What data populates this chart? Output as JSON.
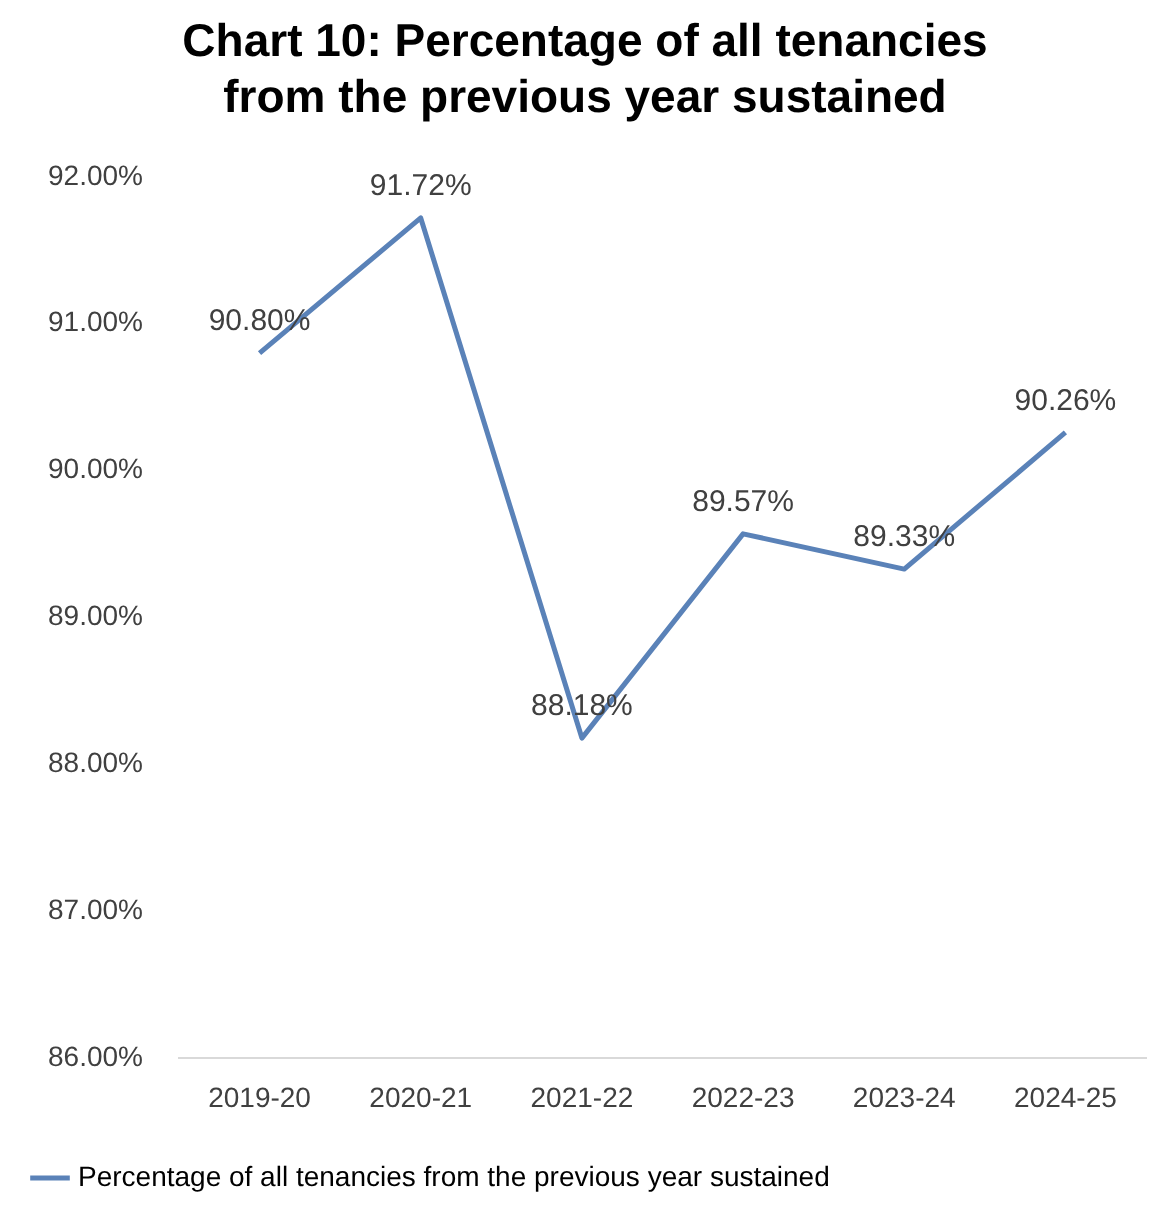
{
  "chart_data": {
    "type": "line",
    "title": "Chart 10: Percentage of all tenancies from the previous year sustained",
    "categories": [
      "2019-20",
      "2020-21",
      "2021-22",
      "2022-23",
      "2023-24",
      "2024-25"
    ],
    "series": [
      {
        "name": "Percentage of all tenancies from the previous year sustained",
        "color": "#5a82b8",
        "values": [
          90.8,
          91.72,
          88.18,
          89.57,
          89.33,
          90.26
        ],
        "value_labels": [
          "90.80%",
          "91.72%",
          "88.18%",
          "89.57%",
          "89.33%",
          "90.26%"
        ]
      }
    ],
    "ylim": [
      86,
      92
    ],
    "yticks": [
      {
        "value": 86,
        "label": "86.00%"
      },
      {
        "value": 87,
        "label": "87.00%"
      },
      {
        "value": 88,
        "label": "88.00%"
      },
      {
        "value": 89,
        "label": "89.00%"
      },
      {
        "value": 90,
        "label": "90.00%"
      },
      {
        "value": 91,
        "label": "91.00%"
      },
      {
        "value": 92,
        "label": "92.00%"
      }
    ],
    "grid": false,
    "legend": "bottom",
    "marker": "none",
    "line_style": "solid"
  }
}
